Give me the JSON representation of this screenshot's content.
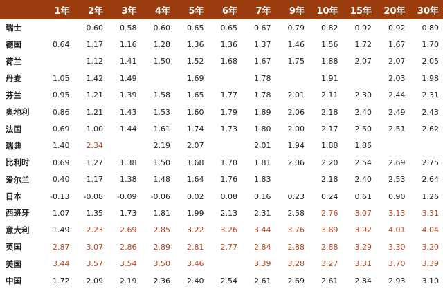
{
  "highlight_color": "#b5451b",
  "header_color": "#9b3d0e",
  "table": {
    "headers": [
      "",
      "1年",
      "2年",
      "3年",
      "4年",
      "5年",
      "6年",
      "7年",
      "9年",
      "10年",
      "15年",
      "20年",
      "30年"
    ],
    "rows": [
      {
        "country": "瑞士",
        "values": [
          "",
          "0.60",
          "0.58",
          "0.60",
          "0.65",
          "0.65",
          "0.67",
          "0.79",
          "0.82",
          "0.92",
          "0.92",
          "0.89"
        ],
        "highlight": []
      },
      {
        "country": "德国",
        "values": [
          "0.64",
          "1.17",
          "1.16",
          "1.28",
          "1.36",
          "1.36",
          "1.37",
          "1.46",
          "1.56",
          "1.72",
          "1.67",
          "1.70"
        ],
        "highlight": []
      },
      {
        "country": "荷兰",
        "values": [
          "",
          "1.12",
          "1.41",
          "1.50",
          "1.52",
          "1.68",
          "1.67",
          "1.75",
          "1.88",
          "2.07",
          "2.07",
          "2.05"
        ],
        "highlight": []
      },
      {
        "country": "丹麦",
        "values": [
          "1.05",
          "1.42",
          "1.49",
          "",
          "1.69",
          "",
          "1.78",
          "",
          "1.91",
          "",
          "2.03",
          "1.98"
        ],
        "highlight": []
      },
      {
        "country": "芬兰",
        "values": [
          "0.95",
          "1.21",
          "1.39",
          "1.58",
          "1.65",
          "1.77",
          "1.78",
          "2.01",
          "2.11",
          "2.30",
          "2.44",
          "2.31"
        ],
        "highlight": []
      },
      {
        "country": "奥地利",
        "values": [
          "0.86",
          "1.21",
          "1.43",
          "1.53",
          "1.60",
          "1.79",
          "1.89",
          "2.06",
          "2.18",
          "2.40",
          "2.49",
          "2.43"
        ],
        "highlight": []
      },
      {
        "country": "法国",
        "values": [
          "0.69",
          "1.00",
          "1.44",
          "1.61",
          "1.74",
          "1.73",
          "1.80",
          "2.00",
          "2.17",
          "2.50",
          "2.51",
          "2.62"
        ],
        "highlight": []
      },
      {
        "country": "瑞典",
        "values": [
          "1.40",
          "2.34",
          "",
          "2.19",
          "2.07",
          "",
          "2.01",
          "1.94",
          "1.88",
          "1.86",
          "",
          ""
        ],
        "highlight": [
          1
        ]
      },
      {
        "country": "比利时",
        "values": [
          "0.69",
          "1.27",
          "1.38",
          "1.50",
          "1.68",
          "1.70",
          "1.81",
          "2.06",
          "2.20",
          "2.54",
          "2.69",
          "2.75"
        ],
        "highlight": []
      },
      {
        "country": "爱尔兰",
        "values": [
          "0.40",
          "1.17",
          "1.38",
          "1.48",
          "1.64",
          "1.76",
          "1.83",
          "",
          "2.18",
          "2.40",
          "2.53",
          "2.64"
        ],
        "highlight": []
      },
      {
        "country": "日本",
        "values": [
          "-0.13",
          "-0.08",
          "-0.09",
          "-0.06",
          "0.02",
          "0.08",
          "0.16",
          "0.23",
          "0.24",
          "0.61",
          "0.90",
          "1.26"
        ],
        "highlight": []
      },
      {
        "country": "西班牙",
        "values": [
          "1.07",
          "1.35",
          "1.73",
          "1.81",
          "1.99",
          "2.13",
          "2.31",
          "2.58",
          "2.76",
          "3.07",
          "3.13",
          "3.31"
        ],
        "highlight": [
          8,
          9,
          10,
          11
        ]
      },
      {
        "country": "意大利",
        "values": [
          "1.49",
          "2.23",
          "2.69",
          "2.85",
          "3.22",
          "3.26",
          "3.44",
          "3.76",
          "3.89",
          "3.92",
          "4.01",
          "4.04"
        ],
        "highlight": [
          1,
          2,
          3,
          4,
          5,
          6,
          7,
          8,
          9,
          10,
          11
        ]
      },
      {
        "country": "英国",
        "values": [
          "2.87",
          "3.07",
          "2.86",
          "2.89",
          "2.81",
          "2.77",
          "2.84",
          "2.88",
          "2.88",
          "3.29",
          "3.30",
          "3.20"
        ],
        "highlight": [
          0,
          1,
          2,
          3,
          4,
          5,
          6,
          7,
          8,
          9,
          10,
          11
        ]
      },
      {
        "country": "美国",
        "values": [
          "3.44",
          "3.57",
          "3.54",
          "3.50",
          "3.46",
          "",
          "3.39",
          "3.28",
          "3.27",
          "3.31",
          "3.70",
          "3.39"
        ],
        "highlight": [
          0,
          1,
          2,
          3,
          4,
          6,
          7,
          8,
          9,
          10,
          11
        ]
      },
      {
        "country": "中国",
        "values": [
          "1.72",
          "2.09",
          "2.19",
          "2.36",
          "2.40",
          "2.54",
          "2.61",
          "2.69",
          "2.61",
          "2.84",
          "2.93",
          "3.10"
        ],
        "highlight": []
      }
    ]
  }
}
